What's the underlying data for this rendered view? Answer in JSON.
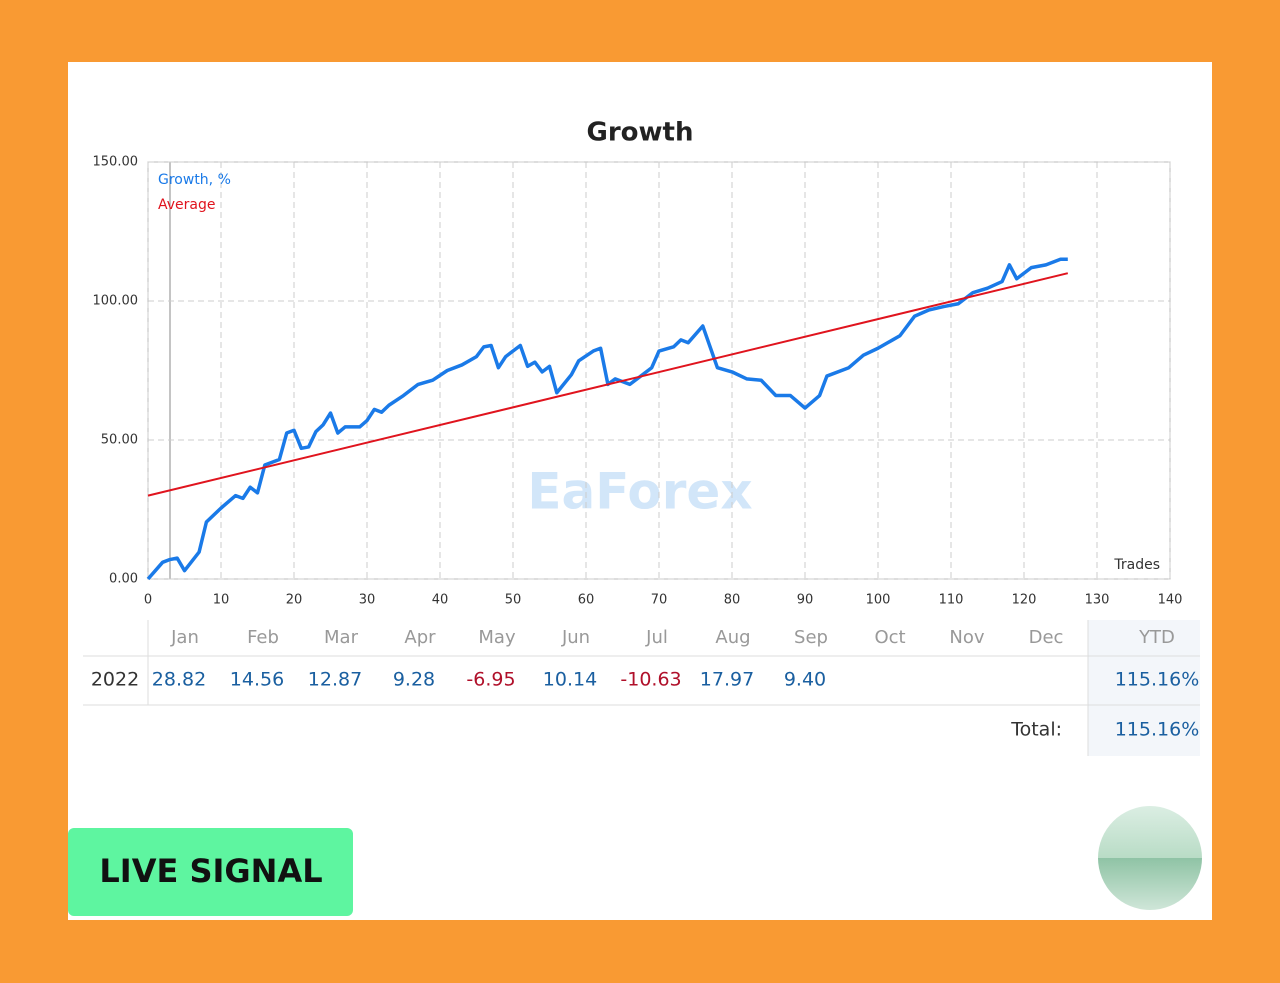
{
  "chart_data": {
    "type": "line",
    "title": "Growth",
    "xlabel": "Trades",
    "series": [
      {
        "name": "Growth, %",
        "color": "#1a7ae8",
        "x": [
          0,
          1,
          2,
          3,
          4,
          5,
          7,
          8,
          10,
          12,
          13,
          14,
          15,
          16,
          18,
          19,
          20,
          21,
          22,
          23,
          24,
          25,
          26,
          27,
          29,
          30,
          31,
          32,
          33,
          35,
          37,
          39,
          41,
          43,
          45,
          46,
          47,
          48,
          49,
          51,
          52,
          53,
          54,
          55,
          56,
          58,
          59,
          61,
          62,
          63,
          64,
          66,
          67,
          69,
          70,
          72,
          73,
          74,
          76,
          78,
          80,
          82,
          84,
          86,
          88,
          90,
          92,
          93,
          96,
          98,
          100,
          102,
          103,
          105,
          107,
          109,
          111,
          113,
          115,
          117,
          118,
          119,
          121,
          123,
          125,
          126
        ],
        "values": [
          0,
          3,
          6,
          7,
          7.5,
          3,
          9.7,
          20.5,
          25.5,
          30,
          29,
          33,
          31,
          41,
          43,
          52.5,
          53.5,
          47,
          47.5,
          53,
          55.5,
          59.7,
          52.5,
          54.7,
          54.7,
          57,
          61,
          60,
          62.5,
          66,
          70,
          71.5,
          75,
          77,
          80,
          83.5,
          84,
          76,
          80,
          84,
          76.5,
          78,
          74.5,
          76.5,
          67,
          73.5,
          78.5,
          82,
          83,
          70,
          72,
          70,
          72,
          76,
          82,
          83.5,
          86,
          85,
          91,
          76,
          74.5,
          72,
          71.5,
          66,
          66,
          61.5,
          66,
          73,
          76,
          80.5,
          83,
          86,
          87.5,
          94.5,
          96.8,
          98,
          99,
          103,
          104.6,
          107,
          113,
          108,
          112,
          113,
          115,
          115
        ]
      },
      {
        "name": "Average",
        "color": "#e0141e",
        "x": [
          0,
          126
        ],
        "values": [
          30,
          110
        ]
      }
    ],
    "xlim": [
      0,
      140
    ],
    "xticks": [
      0,
      10,
      20,
      30,
      40,
      50,
      60,
      70,
      80,
      90,
      100,
      110,
      120,
      130,
      140
    ],
    "ylim": [
      0,
      150
    ],
    "yticks": [
      {
        "value": 0,
        "label": "0.00"
      },
      {
        "value": 50,
        "label": "50.00"
      },
      {
        "value": 100,
        "label": "100.00"
      },
      {
        "value": 150,
        "label": "150.00"
      }
    ],
    "grid": true,
    "legend": "top-left"
  },
  "table": {
    "header": [
      "Jan",
      "Feb",
      "Mar",
      "Apr",
      "May",
      "Jun",
      "Jul",
      "Aug",
      "Sep",
      "Oct",
      "Nov",
      "Dec",
      "YTD"
    ],
    "year": "2022",
    "values": [
      28.82,
      14.56,
      12.87,
      9.28,
      -6.95,
      10.14,
      -10.63,
      17.97,
      9.4
    ],
    "value_labels": [
      "28.82",
      "14.56",
      "12.87",
      "9.28",
      "-6.95",
      "10.14",
      "-10.63",
      "17.97",
      "9.40"
    ],
    "ytd": "115.16%",
    "total_label": "Total:",
    "total": "115.16%"
  },
  "watermark": "EaForex",
  "badge": "LIVE SIGNAL"
}
